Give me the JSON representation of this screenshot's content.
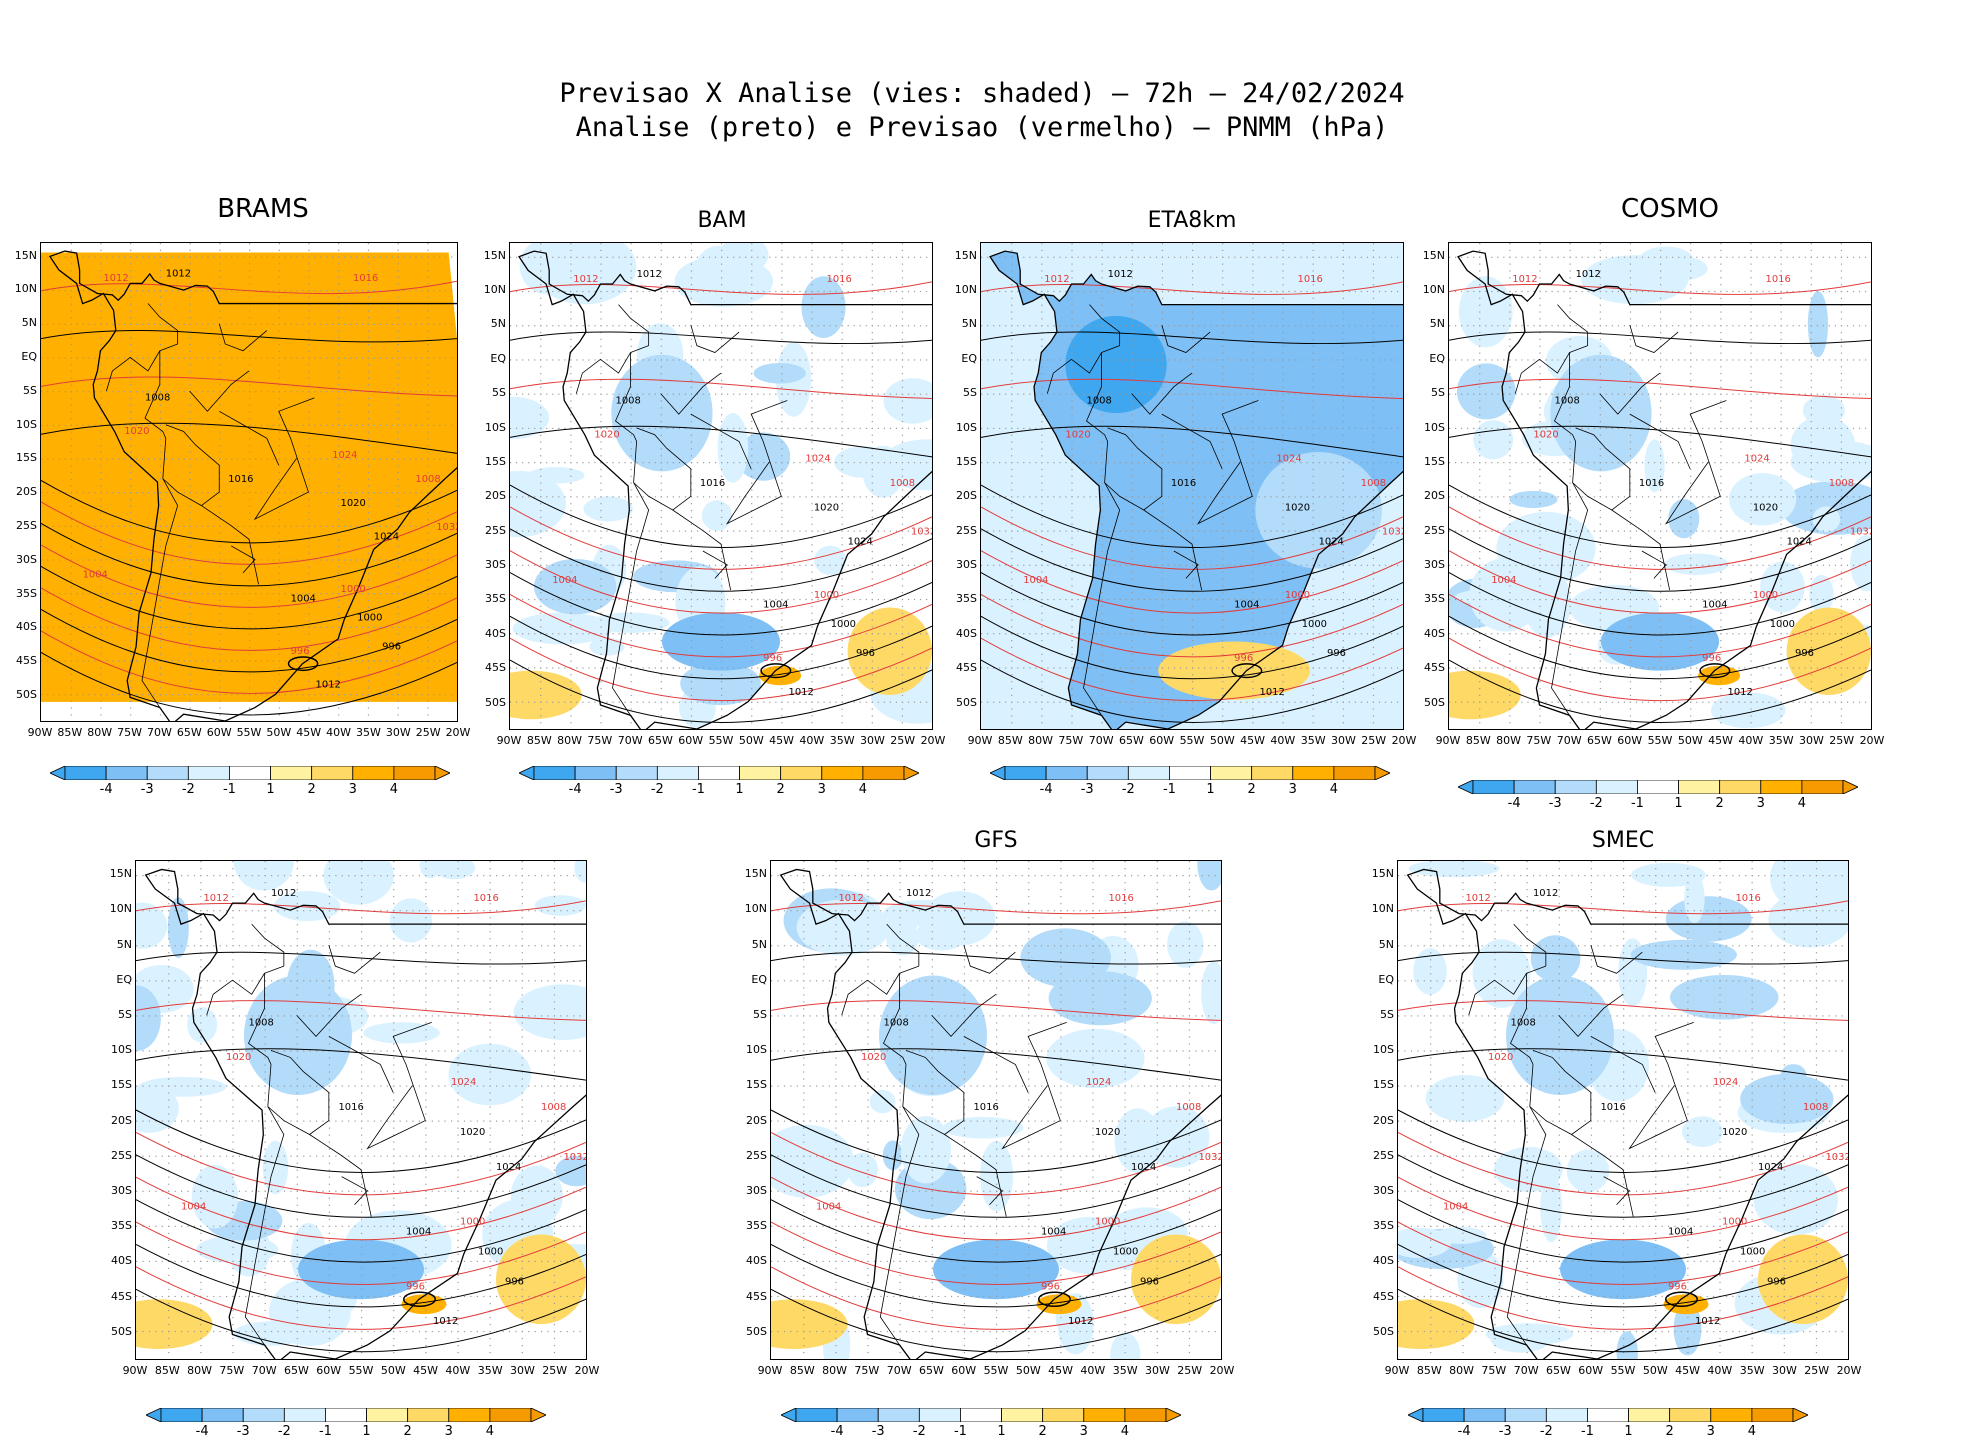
{
  "header": {
    "line1": "Previsao X Analise (vies: shaded) – 72h – 24/02/2024",
    "line2": "Analise (preto) e Previsao (vermelho) – PNMM (hPa)"
  },
  "lat_labels": [
    "15N",
    "10N",
    "5N",
    "EQ",
    "5S",
    "10S",
    "15S",
    "20S",
    "25S",
    "30S",
    "35S",
    "40S",
    "45S",
    "50S"
  ],
  "lon_labels": [
    "90W",
    "85W",
    "80W",
    "75W",
    "70W",
    "65W",
    "60W",
    "55W",
    "50W",
    "45W",
    "40W",
    "35W",
    "30W",
    "25W",
    "20W"
  ],
  "colorbar": {
    "labels": [
      "-4",
      "-3",
      "-2",
      "-1",
      "1",
      "2",
      "3",
      "4"
    ],
    "colors": [
      "#3fa7f0",
      "#7ebff5",
      "#b3dbfa",
      "#daf2ff",
      "#ffffff",
      "#fff2a0",
      "#ffd966",
      "#ffb000",
      "#f59a00"
    ]
  },
  "colors": {
    "analysis": "#000000",
    "forecast": "#e23b3b",
    "coast": "#000000"
  },
  "panels": [
    {
      "id": "brams",
      "title": "BRAMS",
      "bias": "warm"
    },
    {
      "id": "bam",
      "title": "BAM",
      "bias": "mixed"
    },
    {
      "id": "eta8km",
      "title": "ETA8km",
      "bias": "cold"
    },
    {
      "id": "cosmo",
      "title": "COSMO",
      "bias": "mixed"
    },
    {
      "id": "unnamed",
      "title": "",
      "bias": "mixed"
    },
    {
      "id": "gfs",
      "title": "GFS",
      "bias": "mixed"
    },
    {
      "id": "smec",
      "title": "SMEC",
      "bias": "mixed"
    }
  ],
  "contours": {
    "analysis_labels": [
      "1012",
      "1008",
      "1016",
      "1020",
      "1024",
      "1004",
      "1000",
      "996"
    ],
    "forecast_labels": [
      "1012",
      "1016",
      "1020",
      "1024",
      "1008",
      "1004",
      "1000",
      "996",
      "1032"
    ]
  }
}
